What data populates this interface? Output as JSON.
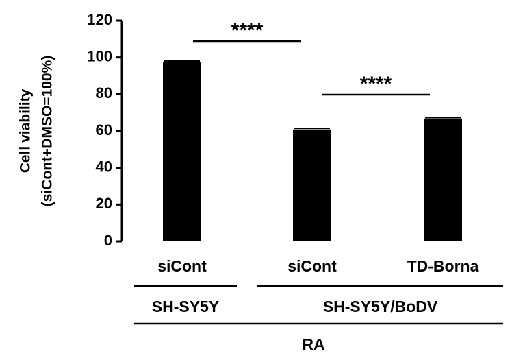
{
  "chart_data": {
    "type": "bar",
    "title": "",
    "xlabel": "",
    "ylabel_lines": [
      "Cell viability",
      "(siCont+DMSO=100%)"
    ],
    "ylim": [
      0,
      120
    ],
    "yticks": [
      0,
      20,
      40,
      60,
      80,
      100,
      120
    ],
    "categories": [
      "siCont",
      "siCont",
      "TD-Borna"
    ],
    "values": [
      97.5,
      60.8,
      66.8
    ],
    "errors": [
      0.5,
      0.6,
      0.5
    ],
    "bar_color": "#000000",
    "group_labels": [
      {
        "label": "SH-SY5Y",
        "from": 0,
        "to": 0
      },
      {
        "label": "SH-SY5Y/BoDV",
        "from": 1,
        "to": 2
      }
    ],
    "treatment_label": {
      "label": "RA",
      "from": 0,
      "to": 2
    },
    "significance": [
      {
        "from": 0,
        "to": 1,
        "label": "****"
      },
      {
        "from": 1,
        "to": 2,
        "label": "****"
      }
    ],
    "grid": false,
    "legend": "none"
  }
}
